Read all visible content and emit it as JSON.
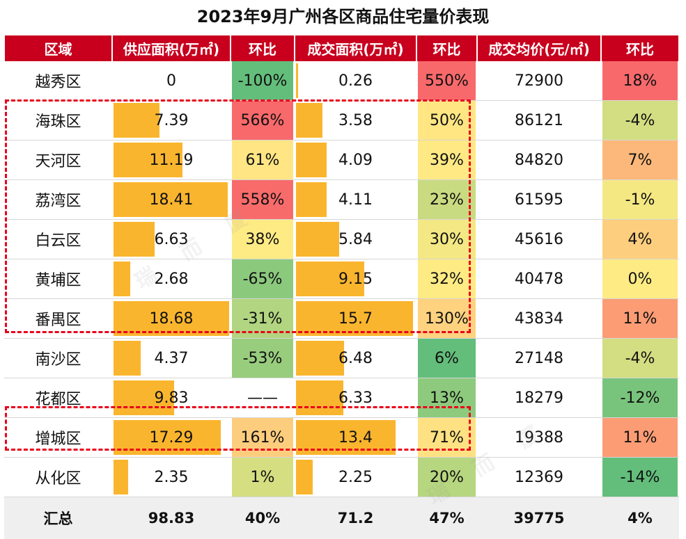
{
  "title": "2023年9月广州各区商品住宅量价表现",
  "headers": [
    "区域",
    "供应面积(万㎡)",
    "环比",
    "成交面积(万㎡)",
    "环比",
    "成交均价(元/㎡)",
    "环比"
  ],
  "rows": [
    {
      "district": "越秀区",
      "supply": "0",
      "supply_mom": "-100%",
      "deal": "0.26",
      "deal_mom": "550%",
      "price": "72900",
      "price_mom": "18%"
    },
    {
      "district": "海珠区",
      "supply": "7.39",
      "supply_mom": "566%",
      "deal": "3.58",
      "deal_mom": "50%",
      "price": "86121",
      "price_mom": "-4%"
    },
    {
      "district": "天河区",
      "supply": "11.19",
      "supply_mom": "61%",
      "deal": "4.09",
      "deal_mom": "39%",
      "price": "84820",
      "price_mom": "7%"
    },
    {
      "district": "荔湾区",
      "supply": "18.41",
      "supply_mom": "558%",
      "deal": "4.11",
      "deal_mom": "23%",
      "price": "61595",
      "price_mom": "-1%"
    },
    {
      "district": "白云区",
      "supply": "6.63",
      "supply_mom": "38%",
      "deal": "5.84",
      "deal_mom": "30%",
      "price": "45616",
      "price_mom": "4%"
    },
    {
      "district": "黄埔区",
      "supply": "2.68",
      "supply_mom": "-65%",
      "deal": "9.15",
      "deal_mom": "32%",
      "price": "40478",
      "price_mom": "0%"
    },
    {
      "district": "番禺区",
      "supply": "18.68",
      "supply_mom": "-31%",
      "deal": "15.7",
      "deal_mom": "130%",
      "price": "43834",
      "price_mom": "11%"
    },
    {
      "district": "南沙区",
      "supply": "4.37",
      "supply_mom": "-53%",
      "deal": "6.48",
      "deal_mom": "6%",
      "price": "27148",
      "price_mom": "-4%"
    },
    {
      "district": "花都区",
      "supply": "9.83",
      "supply_mom": "——",
      "deal": "6.33",
      "deal_mom": "13%",
      "price": "18279",
      "price_mom": "-12%"
    },
    {
      "district": "增城区",
      "supply": "17.29",
      "supply_mom": "161%",
      "deal": "13.4",
      "deal_mom": "71%",
      "price": "19388",
      "price_mom": "11%"
    },
    {
      "district": "从化区",
      "supply": "2.35",
      "supply_mom": "1%",
      "deal": "2.25",
      "deal_mom": "20%",
      "price": "12369",
      "price_mom": "-14%"
    }
  ],
  "total": {
    "district": "汇总",
    "supply": "98.83",
    "supply_mom": "40%",
    "deal": "71.2",
    "deal_mom": "47%",
    "price": "39775",
    "price_mom": "4%"
  },
  "colors": {
    "header_bg": "#c8001e",
    "bar": "#fab52e",
    "total_bg": "#efefef",
    "highlight": "#e8001c",
    "heat_low": "#63be7b",
    "heat_mid": "#ffeb84",
    "heat_high": "#f8696b"
  },
  "watermark_text": "瑞 而 厦"
}
